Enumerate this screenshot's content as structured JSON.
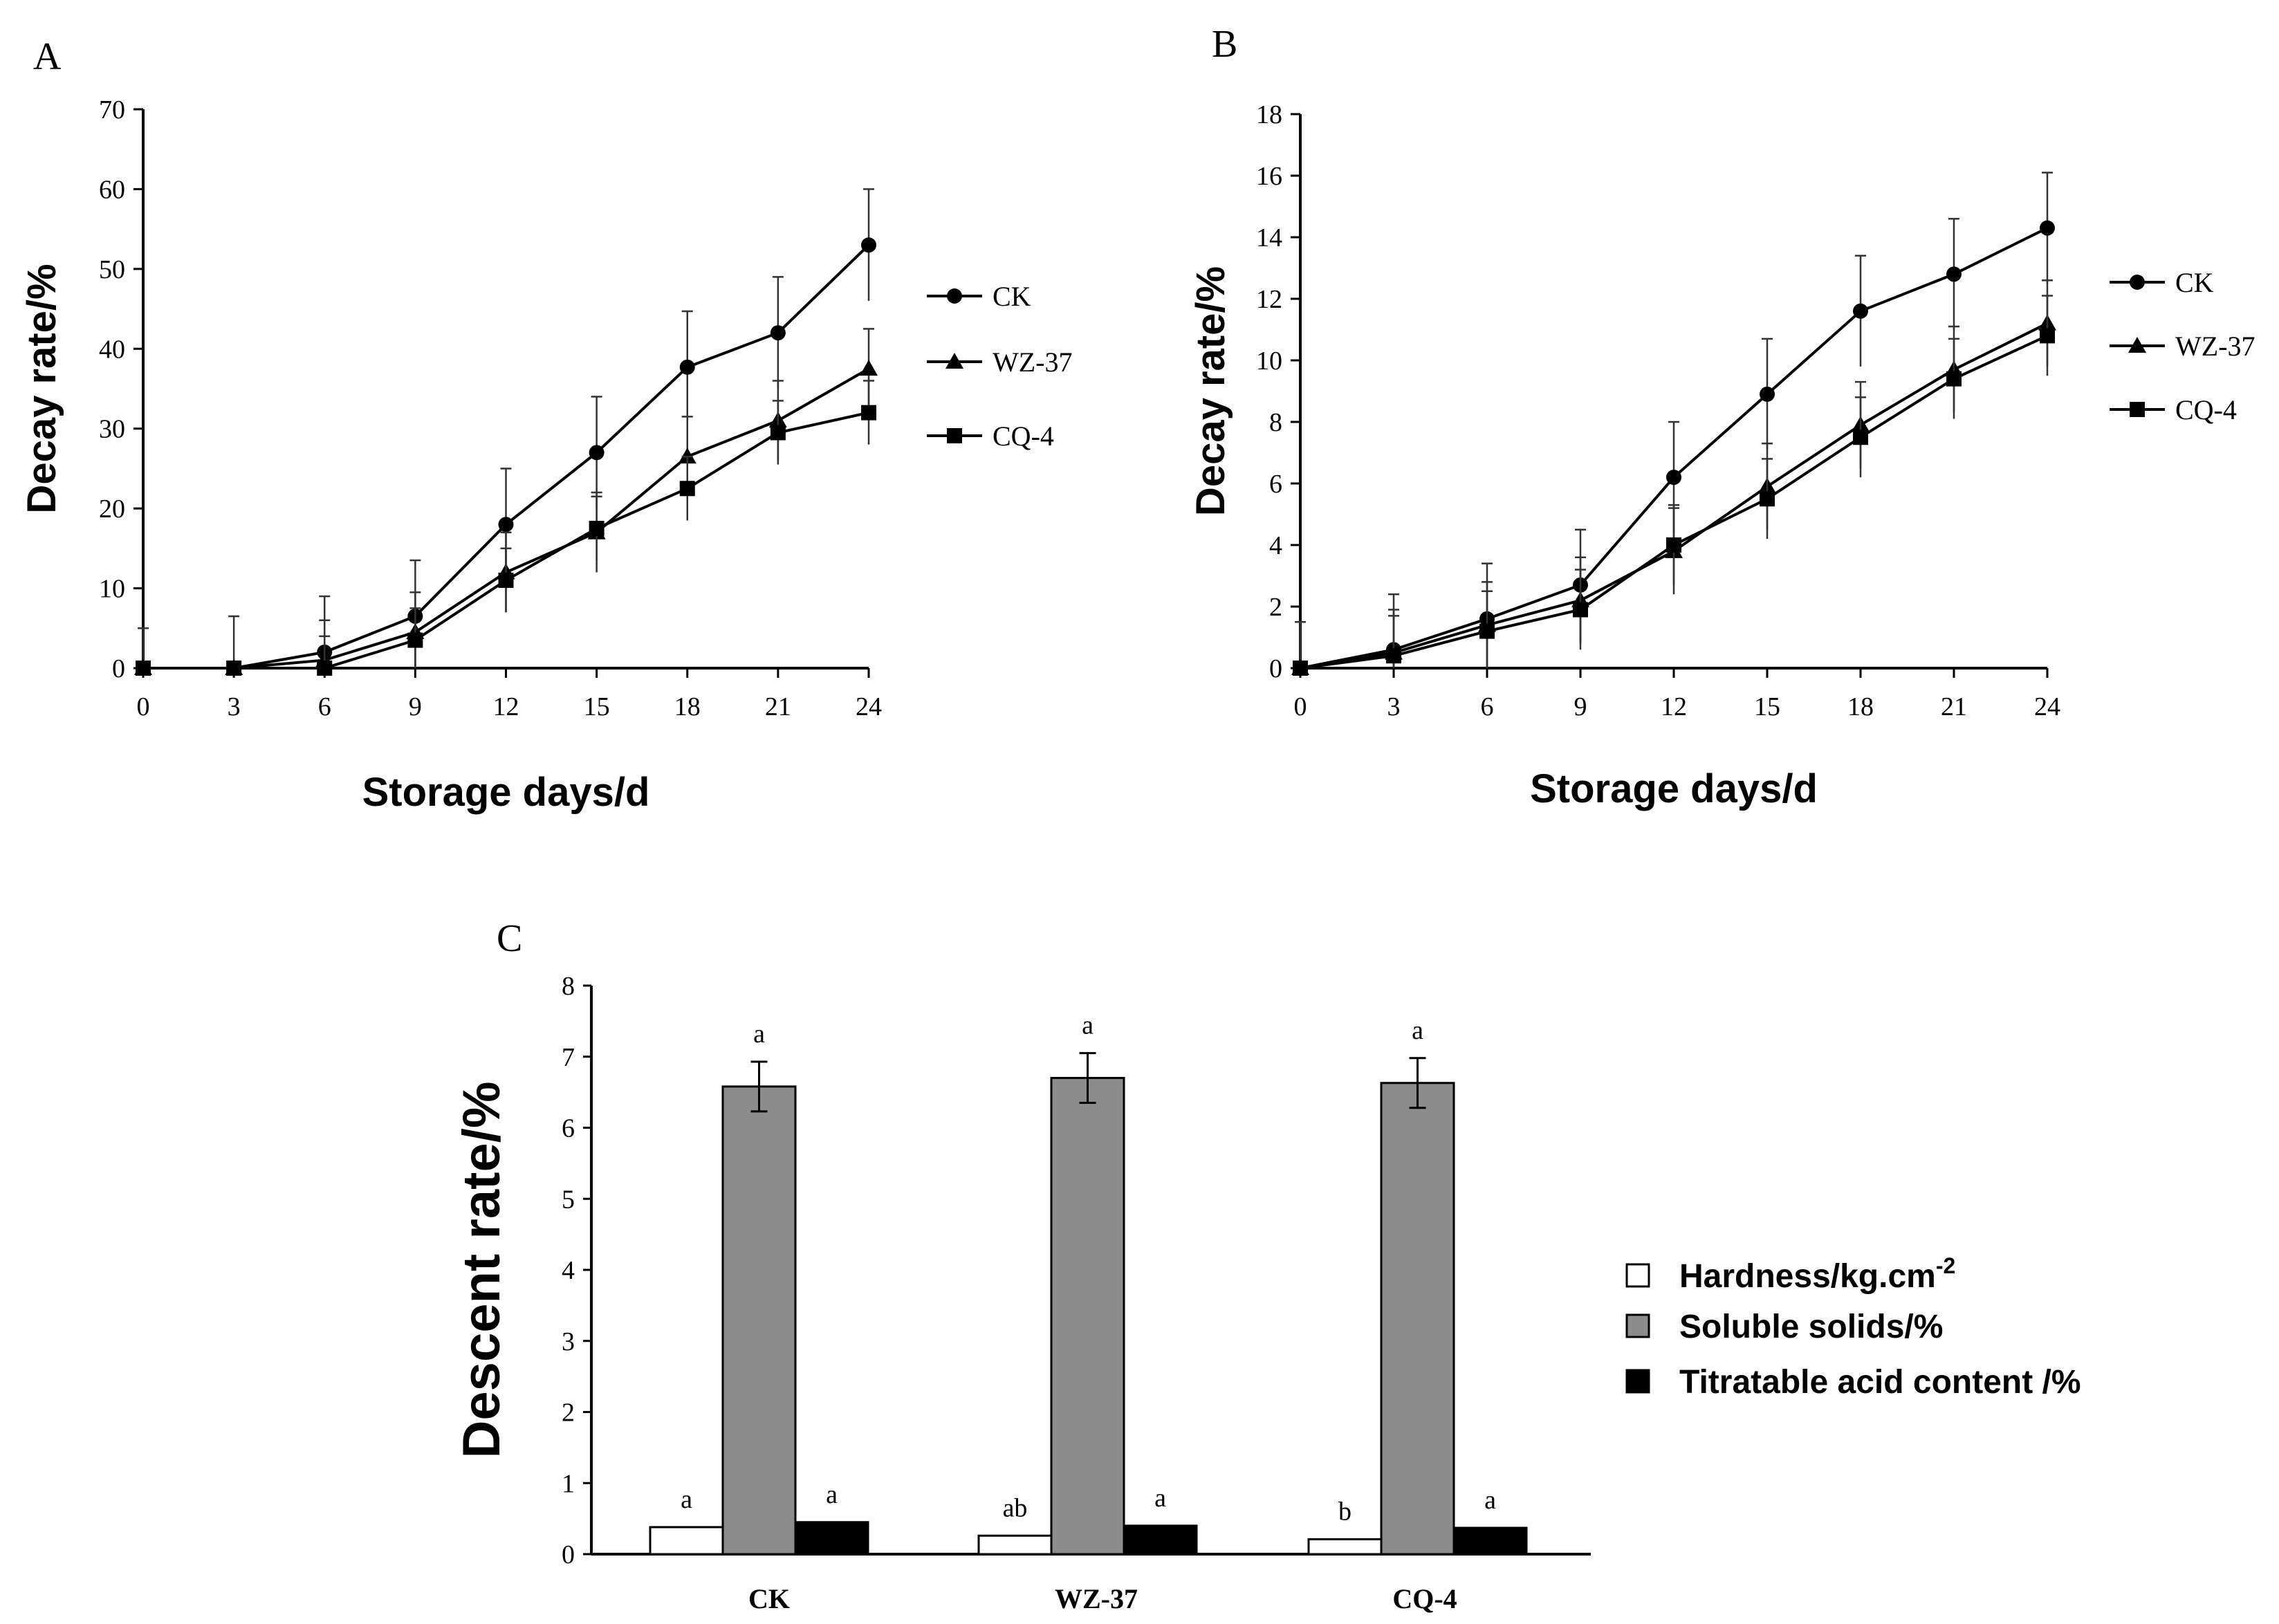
{
  "chart_data": [
    {
      "panel": "A",
      "type": "line",
      "xlabel": "Storage days/d",
      "ylabel": "Decay rate/%",
      "x": [
        0,
        3,
        6,
        9,
        12,
        15,
        18,
        21,
        24
      ],
      "xticks": [
        "0",
        "3",
        "6",
        "9",
        "12",
        "15",
        "18",
        "21",
        "24"
      ],
      "yticks": [
        "0",
        "10",
        "20",
        "30",
        "40",
        "50",
        "60",
        "70"
      ],
      "ylim": [
        0,
        70
      ],
      "legend_position": "right",
      "series": [
        {
          "name": "CK",
          "marker": "circle",
          "values": [
            0,
            0,
            2,
            6.5,
            18,
            27,
            37.7,
            42,
            53
          ],
          "errors": [
            5,
            6.5,
            7,
            7,
            7,
            7,
            7,
            7,
            7
          ]
        },
        {
          "name": "WZ-37",
          "marker": "triangle",
          "values": [
            0,
            0,
            1,
            4.5,
            12,
            17,
            26.5,
            31,
            37.5
          ],
          "errors": [
            0,
            0,
            5,
            5,
            5,
            5,
            5,
            5,
            5
          ]
        },
        {
          "name": "CQ-4",
          "marker": "square",
          "values": [
            0,
            0,
            0,
            3.5,
            11,
            17.5,
            22.5,
            29.5,
            32
          ],
          "errors": [
            0,
            0,
            4,
            4,
            4,
            4,
            4,
            4,
            4
          ]
        }
      ]
    },
    {
      "panel": "B",
      "type": "line",
      "xlabel": "Storage days/d",
      "ylabel": "Decay rate/%",
      "x": [
        0,
        3,
        6,
        9,
        12,
        15,
        18,
        21,
        24
      ],
      "xticks": [
        "0",
        "3",
        "6",
        "9",
        "12",
        "15",
        "18",
        "21",
        "24"
      ],
      "yticks": [
        "0",
        "2",
        "4",
        "6",
        "8",
        "10",
        "12",
        "14",
        "16",
        "18"
      ],
      "ylim": [
        0,
        18
      ],
      "legend_position": "right",
      "series": [
        {
          "name": "CK",
          "marker": "circle",
          "values": [
            0,
            0.6,
            1.6,
            2.7,
            6.2,
            8.9,
            11.6,
            12.8,
            14.3
          ],
          "errors": [
            1.5,
            1.8,
            1.8,
            1.8,
            1.8,
            1.8,
            1.8,
            1.8,
            1.8
          ]
        },
        {
          "name": "WZ-37",
          "marker": "triangle",
          "values": [
            0,
            0.5,
            1.4,
            2.2,
            3.8,
            5.9,
            7.9,
            9.7,
            11.2
          ],
          "errors": [
            0,
            1.4,
            1.4,
            1.4,
            1.4,
            1.4,
            1.4,
            1.4,
            1.4
          ]
        },
        {
          "name": "CQ-4",
          "marker": "square",
          "values": [
            0,
            0.4,
            1.2,
            1.9,
            4,
            5.5,
            7.5,
            9.4,
            10.8
          ],
          "errors": [
            0,
            1.3,
            1.3,
            1.3,
            1.3,
            1.3,
            1.3,
            1.3,
            1.3
          ]
        }
      ]
    },
    {
      "panel": "C",
      "type": "bar",
      "ylabel": "Descent rate/%",
      "categories": [
        "CK",
        "WZ-37",
        "CQ-4"
      ],
      "yticks": [
        "0",
        "1",
        "2",
        "3",
        "4",
        "5",
        "6",
        "7",
        "8"
      ],
      "ylim": [
        0,
        8
      ],
      "legend_position": "right",
      "series": [
        {
          "name": "Hardness/kg.cm",
          "name_superscript": "-2",
          "fill": "#ffffff",
          "values": [
            0.38,
            0.26,
            0.21
          ],
          "errors": [
            0,
            0,
            0
          ],
          "significance": [
            "a",
            "ab",
            "b"
          ]
        },
        {
          "name": "Soluble solids/%",
          "fill": "#8c8c8c",
          "values": [
            6.58,
            6.7,
            6.63
          ],
          "errors": [
            0.35,
            0.35,
            0.35
          ],
          "significance": [
            "a",
            "a",
            "a"
          ]
        },
        {
          "name": "Titratable acid content /%",
          "fill": "#000000",
          "values": [
            0.45,
            0.4,
            0.37
          ],
          "errors": [
            0,
            0,
            0
          ],
          "significance": [
            "a",
            "a",
            "a"
          ]
        }
      ]
    }
  ]
}
